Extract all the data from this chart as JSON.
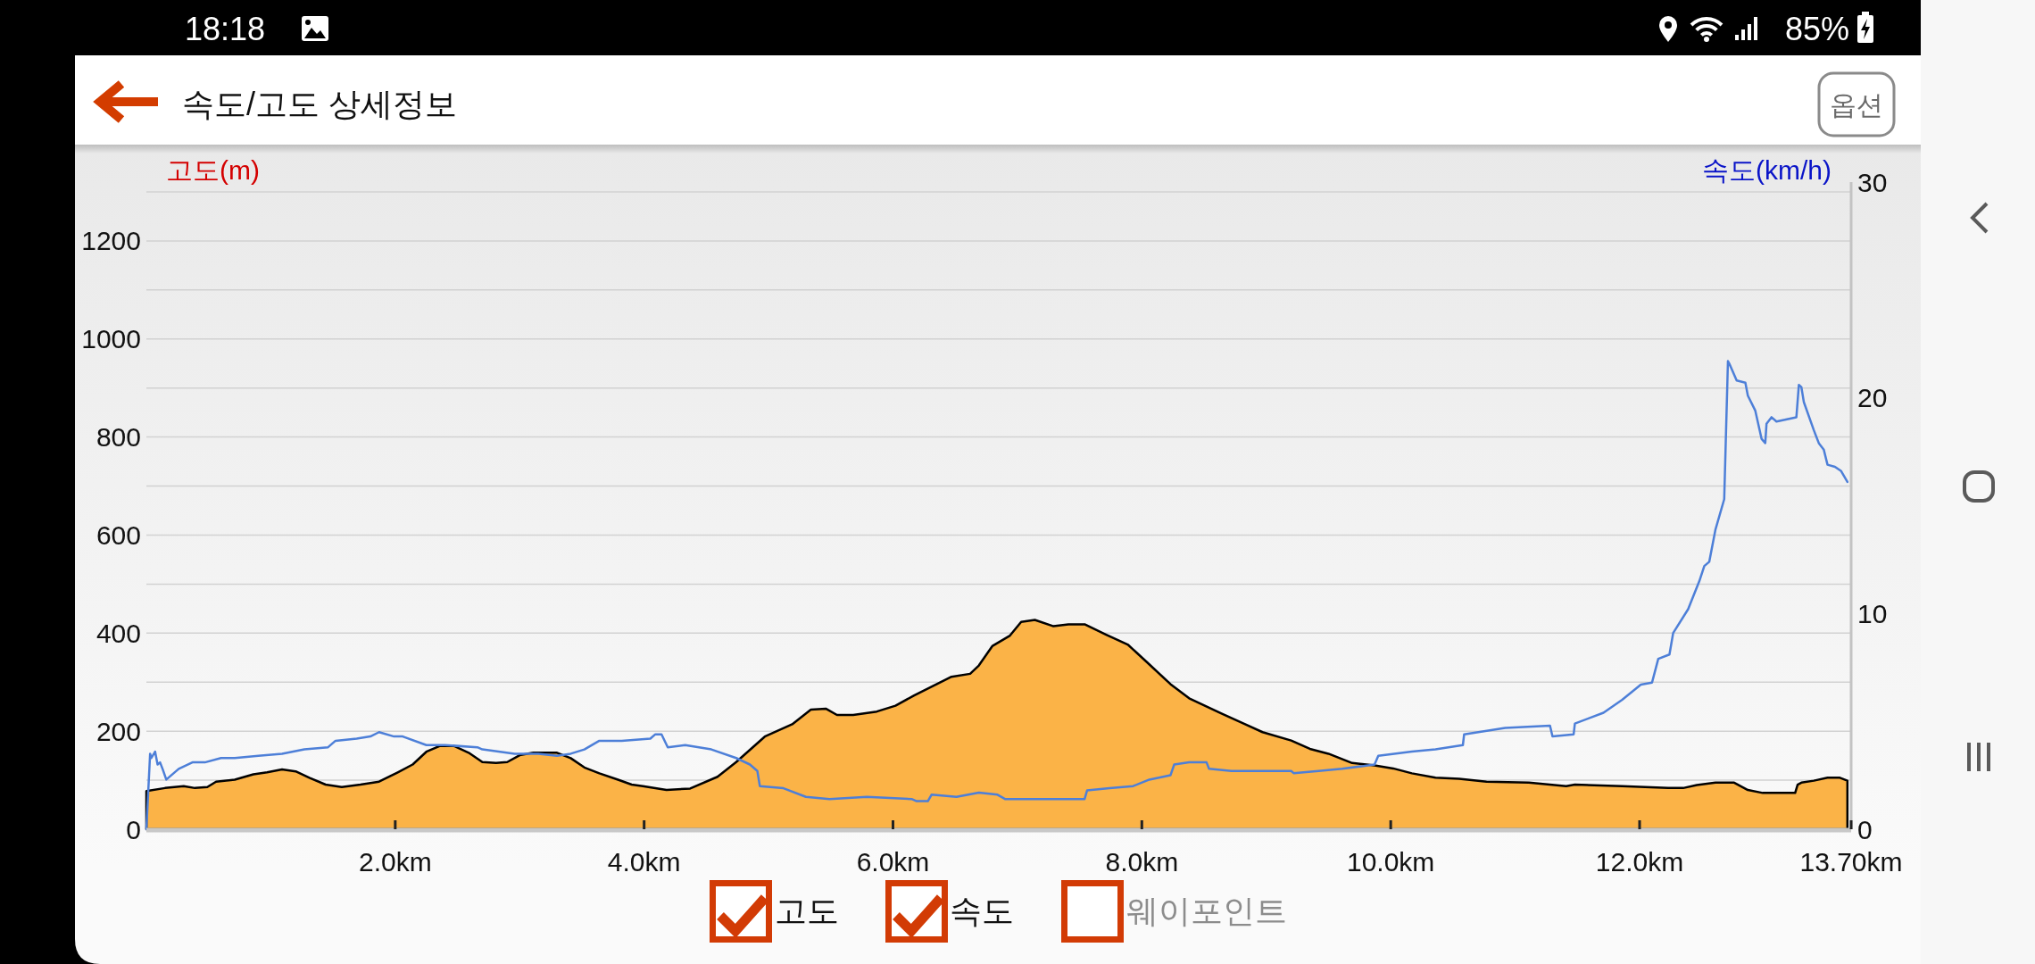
{
  "chart_data": {
    "type": "area",
    "title": "속도/고도 상세정보",
    "ylabel": "고도(m)",
    "y2label": "속도(km/h)",
    "xlim": [
      0,
      13.7
    ],
    "xticks": [
      {
        "value": 2,
        "label": "2.0km"
      },
      {
        "value": 4,
        "label": "4.0km"
      },
      {
        "value": 6,
        "label": "6.0km"
      },
      {
        "value": 8,
        "label": "8.0km"
      },
      {
        "value": 10,
        "label": "10.0km"
      },
      {
        "value": 12,
        "label": "12.0km"
      },
      {
        "value": 13.7,
        "label": "13.70km"
      }
    ],
    "ylim": [
      0,
      1320
    ],
    "yticks": [
      0,
      {
        "value": 100,
        "label": null
      },
      200,
      {
        "value": 300,
        "label": null
      },
      400,
      {
        "value": 500,
        "label": null
      },
      600,
      {
        "value": 700,
        "label": null
      },
      800,
      {
        "value": 900,
        "label": null
      },
      1000,
      {
        "value": 1100,
        "label": null
      },
      1200,
      {
        "value": 1300,
        "label": null
      }
    ],
    "y2lim": [
      0,
      30
    ],
    "y2ticks": [
      0,
      10,
      20,
      30
    ],
    "grid": "y",
    "series": [
      {
        "color": "#fbb347",
        "x": [
          0,
          0.15,
          0.3,
          0.39,
          0.49,
          0.56,
          0.71,
          0.86,
          0.97,
          1.09,
          1.2,
          1.31,
          1.44,
          1.57,
          1.72,
          1.87,
          2.02,
          2.14,
          2.25,
          2.36,
          2.47,
          2.59,
          2.7,
          2.81,
          2.9,
          3.0,
          3.11,
          3.3,
          3.41,
          3.52,
          3.64,
          3.79,
          3.9,
          3.99,
          4.18,
          4.37,
          4.59,
          4.74,
          4.97,
          5.19,
          5.34,
          5.46,
          5.55,
          5.68,
          5.87,
          6.02,
          6.17,
          6.32,
          6.47,
          6.62,
          6.69,
          6.8,
          6.94,
          7.03,
          7.14,
          7.29,
          7.41,
          7.54,
          7.71,
          7.89,
          8.04,
          8.23,
          8.38,
          8.64,
          8.83,
          8.97,
          9.2,
          9.35,
          9.5,
          9.69,
          9.87,
          10.02,
          10.17,
          10.36,
          10.55,
          10.77,
          11.11,
          11.41,
          11.48,
          11.86,
          12.23,
          12.35,
          12.46,
          12.61,
          12.76,
          12.87,
          12.99,
          13.25,
          13.27,
          13.3,
          13.4,
          13.51,
          13.61,
          13.67
        ],
        "values": [
          78,
          84,
          88,
          84,
          86,
          97,
          101,
          112,
          116,
          122,
          118,
          105,
          91,
          86,
          91,
          97,
          116,
          132,
          158,
          170,
          170,
          156,
          137,
          135,
          137,
          151,
          156,
          156,
          145,
          126,
          114,
          101,
          91,
          88,
          80,
          83,
          107,
          137,
          189,
          214,
          244,
          246,
          233,
          233,
          240,
          252,
          273,
          292,
          311,
          317,
          334,
          374,
          395,
          423,
          427,
          414,
          418,
          418,
          397,
          376,
          341,
          296,
          267,
          236,
          214,
          198,
          181,
          164,
          154,
          135,
          130,
          124,
          114,
          105,
          103,
          97,
          95,
          88,
          91,
          88,
          84,
          84,
          90,
          95,
          95,
          80,
          74,
          74,
          91,
          95,
          99,
          105,
          105,
          99
        ]
      },
      {
        "type": "line",
        "axis": "y2",
        "color": "#4d7fd8",
        "x": [
          0,
          0.03,
          0.04,
          0.07,
          0.09,
          0.11,
          0.13,
          0.16,
          0.26,
          0.37,
          0.47,
          0.6,
          0.71,
          0.9,
          1.09,
          1.27,
          1.46,
          1.52,
          1.69,
          1.8,
          1.87,
          1.99,
          2.06,
          2.25,
          2.4,
          2.66,
          2.7,
          2.96,
          3.15,
          3.3,
          3.41,
          3.52,
          3.64,
          3.82,
          4.05,
          4.09,
          4.14,
          4.19,
          4.33,
          4.54,
          4.74,
          4.85,
          4.91,
          4.93,
          5.12,
          5.3,
          5.49,
          5.79,
          6.15,
          6.19,
          6.28,
          6.31,
          6.51,
          6.69,
          6.84,
          6.9,
          7.22,
          7.54,
          7.56,
          7.74,
          7.93,
          8.06,
          8.23,
          8.26,
          8.38,
          8.52,
          8.54,
          8.72,
          9.2,
          9.22,
          9.42,
          9.61,
          9.87,
          9.9,
          10.17,
          10.36,
          10.58,
          10.59,
          10.92,
          11.28,
          11.3,
          11.47,
          11.48,
          11.71,
          11.86,
          12.01,
          12.1,
          12.15,
          12.24,
          12.27,
          12.39,
          12.48,
          12.52,
          12.56,
          12.61,
          12.68,
          12.71,
          12.72,
          12.78,
          12.85,
          12.87,
          12.93,
          12.98,
          13.01,
          13.02,
          13.06,
          13.1,
          13.26,
          13.28,
          13.3,
          13.32,
          13.4,
          13.44,
          13.48,
          13.51,
          13.57,
          13.62,
          13.67
        ],
        "values": [
          0,
          3.5,
          3.3,
          3.6,
          3.0,
          3.1,
          2.8,
          2.3,
          2.8,
          3.1,
          3.1,
          3.3,
          3.3,
          3.4,
          3.5,
          3.7,
          3.8,
          4.1,
          4.2,
          4.3,
          4.5,
          4.3,
          4.3,
          3.9,
          3.9,
          3.8,
          3.7,
          3.5,
          3.5,
          3.4,
          3.5,
          3.7,
          4.1,
          4.1,
          4.2,
          4.4,
          4.4,
          3.8,
          3.9,
          3.7,
          3.3,
          3.0,
          2.7,
          2.0,
          1.9,
          1.5,
          1.4,
          1.5,
          1.4,
          1.3,
          1.3,
          1.6,
          1.5,
          1.7,
          1.6,
          1.4,
          1.4,
          1.4,
          1.8,
          1.9,
          2.0,
          2.3,
          2.5,
          3.0,
          3.1,
          3.1,
          2.8,
          2.7,
          2.7,
          2.6,
          2.7,
          2.8,
          3.0,
          3.4,
          3.6,
          3.7,
          3.9,
          4.4,
          4.7,
          4.8,
          4.3,
          4.4,
          4.9,
          5.4,
          6.0,
          6.7,
          6.8,
          7.9,
          8.1,
          9.1,
          10.2,
          11.5,
          12.2,
          12.4,
          13.9,
          15.3,
          21.7,
          21.6,
          20.8,
          20.7,
          20.1,
          19.4,
          18.1,
          17.9,
          18.8,
          19.1,
          18.9,
          19.1,
          20.6,
          20.5,
          19.8,
          18.5,
          17.9,
          17.6,
          16.9,
          16.8,
          16.6,
          16.1
        ]
      }
    ],
    "annotations": [
      "18:18",
      "85%",
      "옵션",
      "고도",
      "속도",
      "웨이포인트"
    ]
  }
}
